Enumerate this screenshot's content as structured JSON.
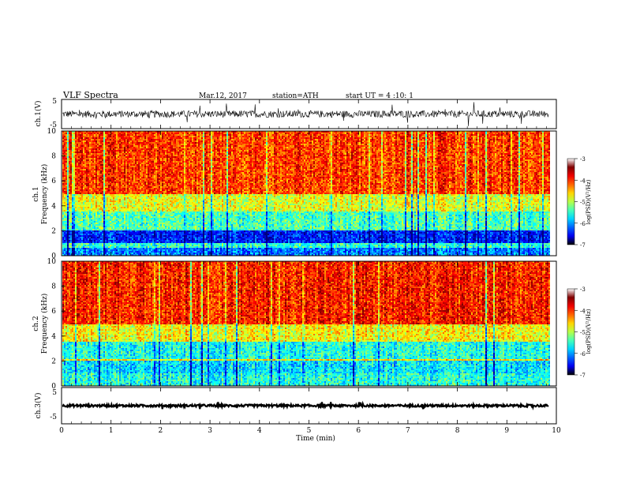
{
  "header": {
    "title": "VLF Spectra",
    "date": "Mar.12, 2017",
    "station": "station=ATH",
    "start_ut": "start UT = 4 :10: 1"
  },
  "chart_data": [
    {
      "id": "ch1_waveform",
      "type": "line",
      "ylabel": "ch.1(V)",
      "ylim": [
        -5,
        5
      ],
      "yticks": [
        "5",
        "-5"
      ],
      "xlim": [
        0,
        10
      ],
      "baseline": 0,
      "noise_amplitude": 1.2,
      "data_end_min": 9.85
    },
    {
      "id": "ch1_spectrogram",
      "type": "heatmap",
      "ylabel_top": "ch.1",
      "ylabel": "Frequency (kHz)",
      "ylim": [
        0,
        10
      ],
      "yticks": [
        "0",
        "2",
        "4",
        "6",
        "8",
        "10"
      ],
      "xlim": [
        0,
        10
      ],
      "colorbar": {
        "label": "log(PSD)(V²/Hz)",
        "range": [
          -7,
          -3
        ],
        "ticks": [
          "-3",
          "-4",
          "-5",
          "-6",
          "-7"
        ]
      },
      "bands": [
        {
          "kHz": [
            0,
            0.6
          ],
          "level": -6.0
        },
        {
          "kHz": [
            0.6,
            1.0
          ],
          "level": -5.3
        },
        {
          "kHz": [
            1.0,
            2.0
          ],
          "level": -6.4
        },
        {
          "kHz": [
            2.0,
            3.5
          ],
          "level": -5.2
        },
        {
          "kHz": [
            3.5,
            5.0
          ],
          "level": -4.6
        },
        {
          "kHz": [
            5.0,
            10.0
          ],
          "level": -3.7
        }
      ]
    },
    {
      "id": "ch2_spectrogram",
      "type": "heatmap",
      "ylabel_top": "ch.2",
      "ylabel": "Frequency (kHz)",
      "ylim": [
        0,
        10
      ],
      "yticks": [
        "0",
        "2",
        "4",
        "6",
        "8",
        "10"
      ],
      "xlim": [
        0,
        10
      ],
      "colorbar": {
        "label": "log(PSD)(V²/Hz)",
        "range": [
          -7,
          -3
        ],
        "ticks": [
          "-3",
          "-4",
          "-5",
          "-6",
          "-7"
        ]
      },
      "bands": [
        {
          "kHz": [
            0,
            1.0
          ],
          "level": -5.4
        },
        {
          "kHz": [
            1.0,
            2.0
          ],
          "level": -5.6
        },
        {
          "kHz": [
            2.0,
            2.2
          ],
          "level": -4.4
        },
        {
          "kHz": [
            2.2,
            3.5
          ],
          "level": -5.4
        },
        {
          "kHz": [
            3.5,
            5.0
          ],
          "level": -4.5
        },
        {
          "kHz": [
            5.0,
            10.0
          ],
          "level": -3.6
        }
      ]
    },
    {
      "id": "ch3_waveform",
      "type": "line",
      "ylabel": "ch.3(V)",
      "ylim": [
        -5,
        5
      ],
      "yticks": [
        "5",
        "-5"
      ],
      "xlim": [
        0,
        10
      ],
      "baseline": 0,
      "noise_amplitude": 0.3,
      "data_end_min": 9.85
    }
  ],
  "x_axis": {
    "label": "Time (min)",
    "ticks": [
      "0",
      "1",
      "2",
      "3",
      "4",
      "5",
      "6",
      "7",
      "8",
      "9",
      "10"
    ]
  }
}
